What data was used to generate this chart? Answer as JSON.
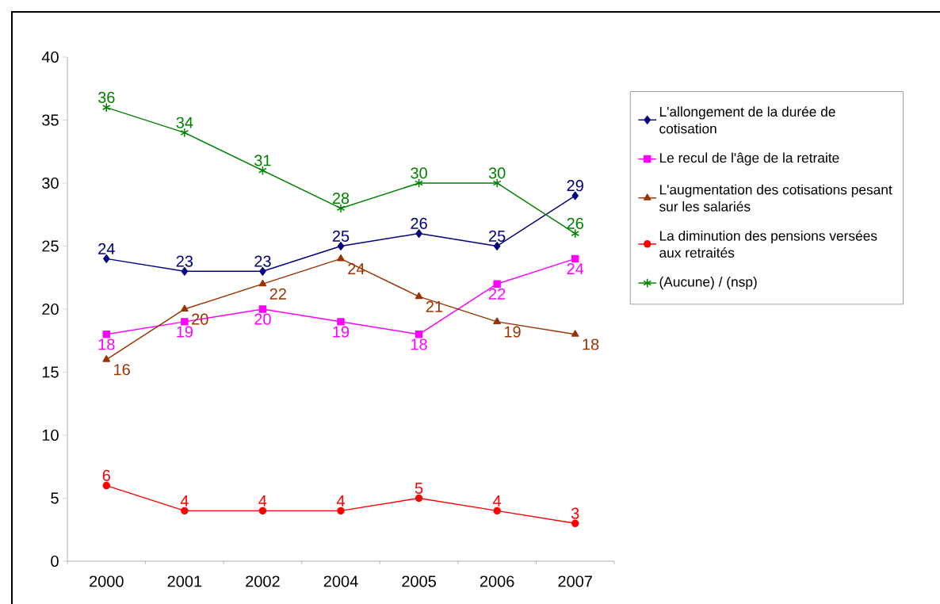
{
  "chart_data": {
    "type": "line",
    "categories": [
      "2000",
      "2001",
      "2002",
      "2004",
      "2005",
      "2006",
      "2007"
    ],
    "series": [
      {
        "name": "L'allongement de la durée de cotisation",
        "color": "#000080",
        "marker": "diamond",
        "values": [
          24,
          23,
          23,
          25,
          26,
          25,
          29
        ]
      },
      {
        "name": "Le recul de l'âge de la retraite",
        "color": "#ff00ff",
        "marker": "square",
        "values": [
          18,
          19,
          20,
          19,
          18,
          22,
          24
        ]
      },
      {
        "name": "L'augmentation des cotisations pesant sur les salariés",
        "color": "#993300",
        "marker": "triangle",
        "values": [
          16,
          20,
          22,
          24,
          21,
          19,
          18
        ]
      },
      {
        "name": "La diminution des pensions versées aux retraités",
        "color": "#ff0000",
        "marker": "circle",
        "values": [
          6,
          4,
          4,
          4,
          5,
          4,
          3
        ]
      },
      {
        "name": "(Aucune) / (nsp)",
        "color": "#008000",
        "marker": "cross",
        "values": [
          36,
          34,
          31,
          28,
          30,
          30,
          26
        ]
      }
    ],
    "ylim": [
      0,
      40
    ],
    "yticks": [
      0,
      5,
      10,
      15,
      20,
      25,
      30,
      35,
      40
    ],
    "data_labels": true,
    "legend": "right",
    "grid": false
  }
}
